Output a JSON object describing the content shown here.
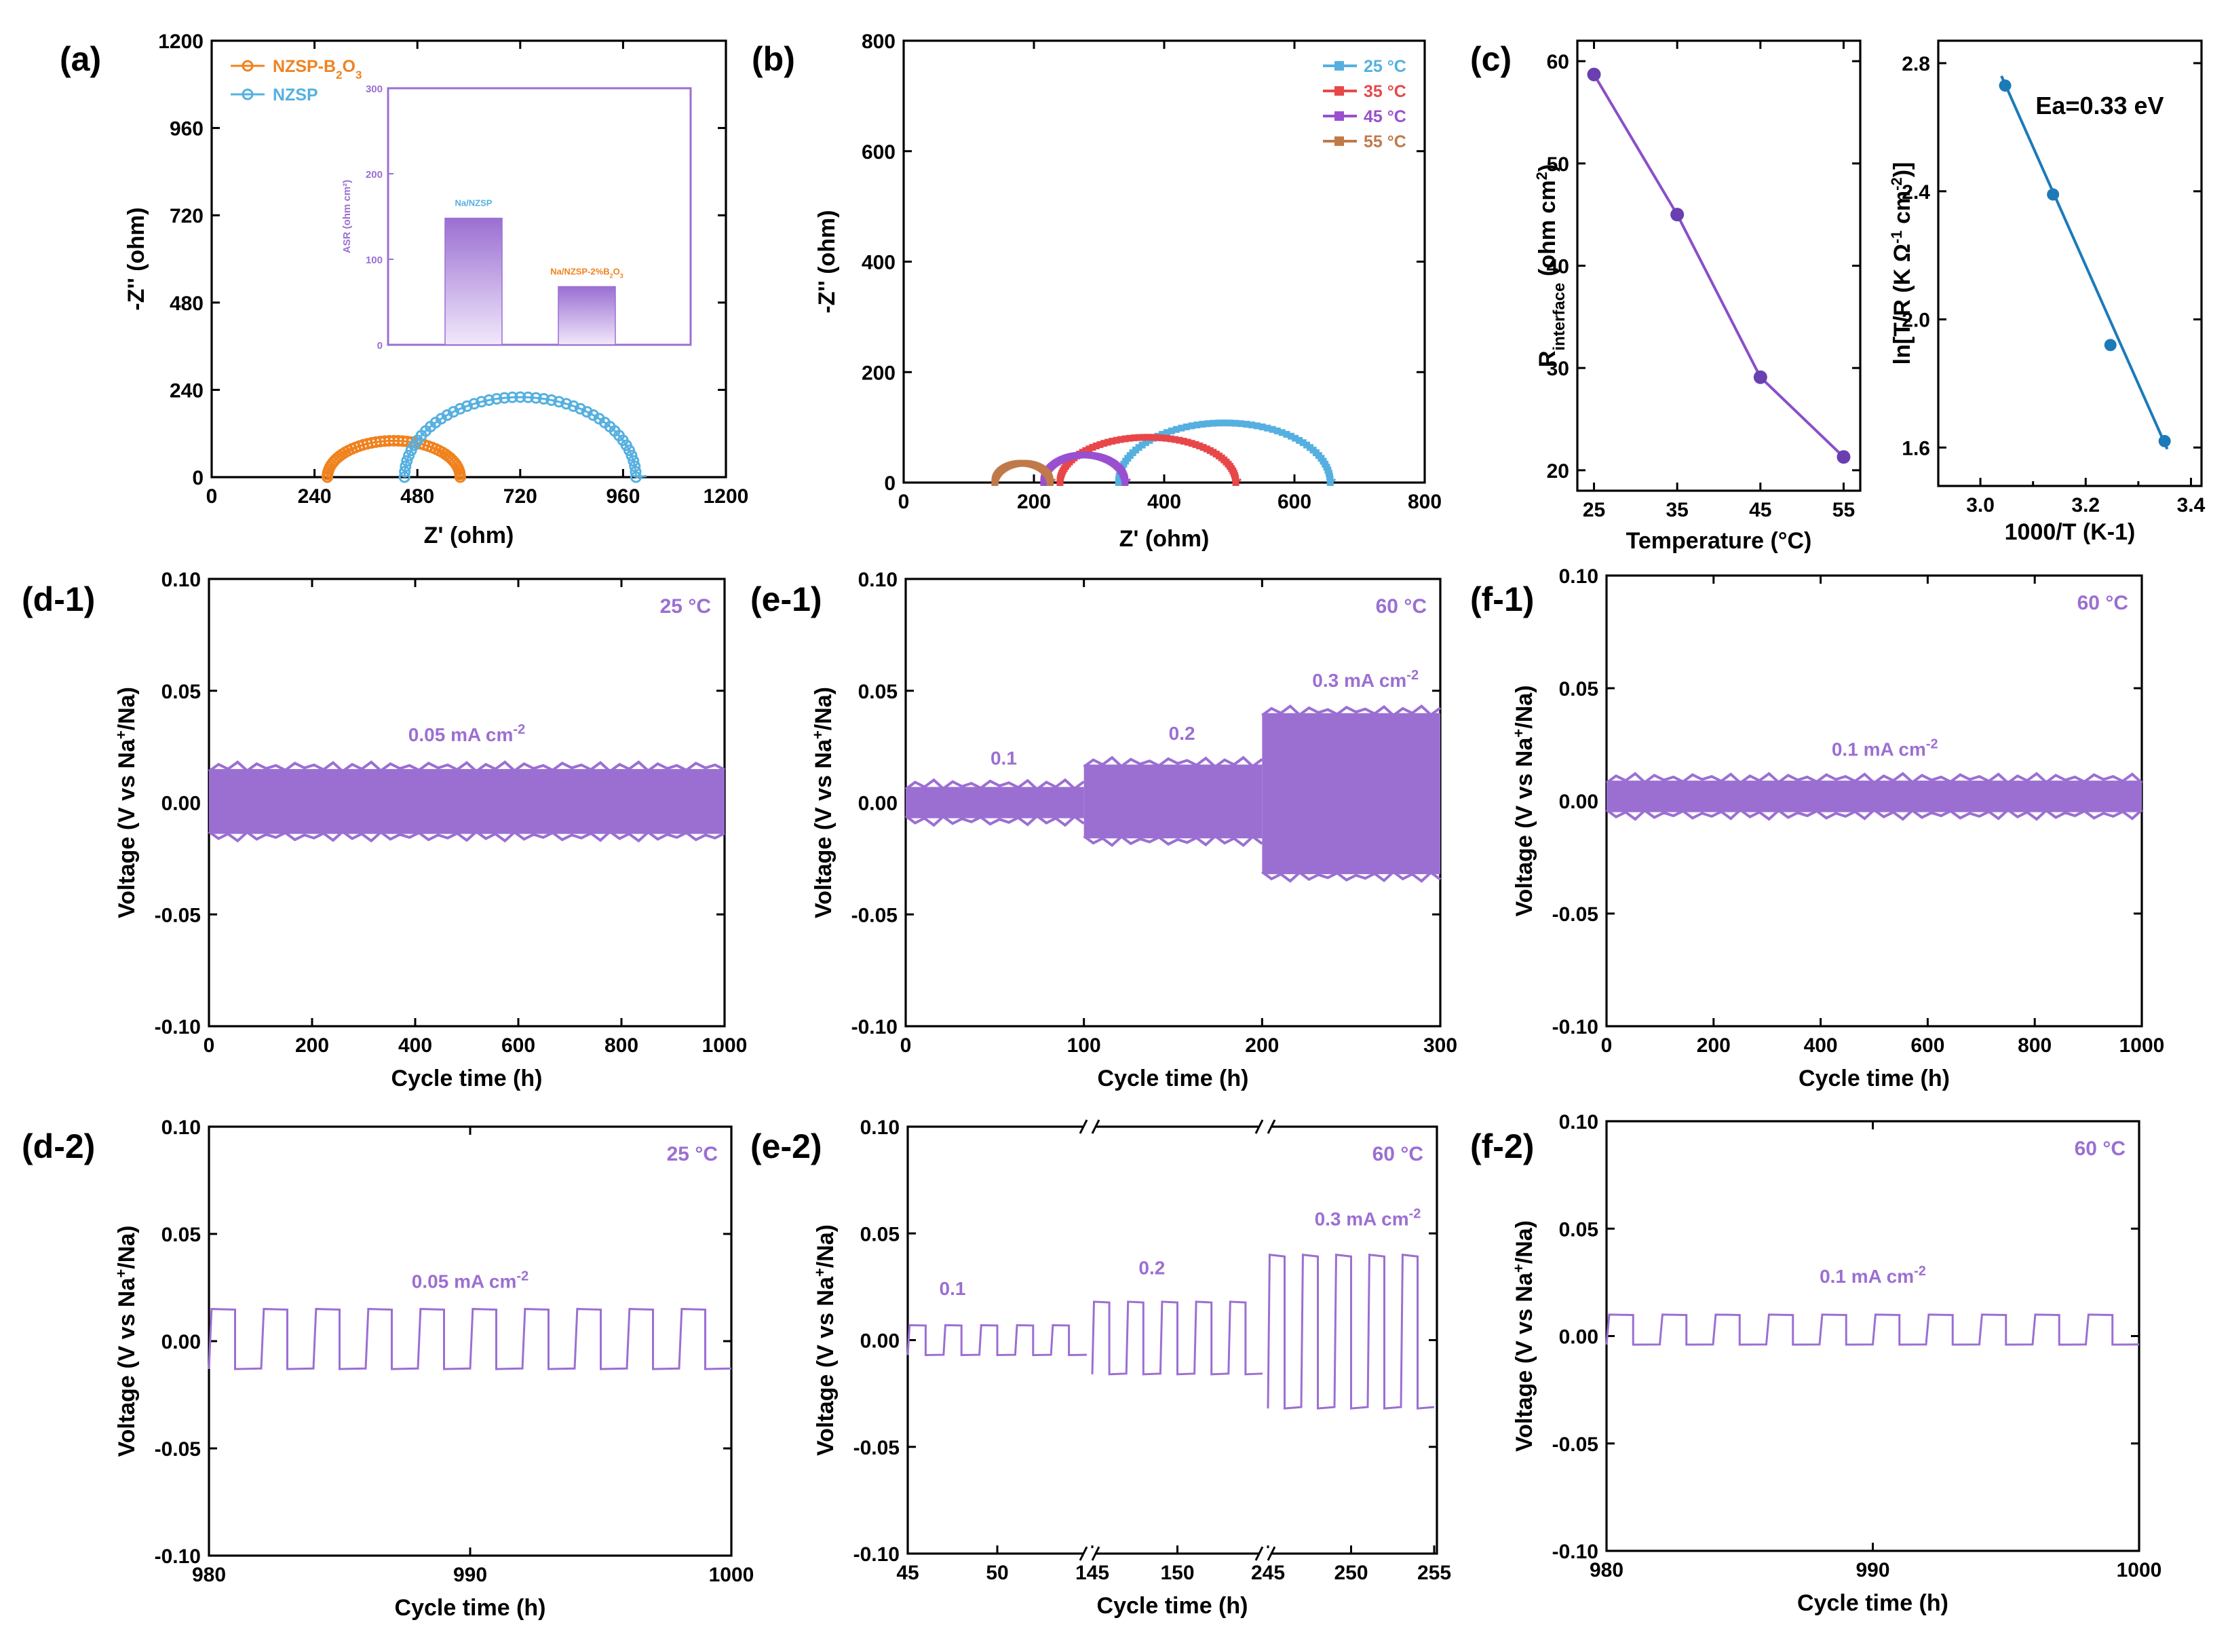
{
  "colors": {
    "purple": "#9b6fd2",
    "orange": "#f0821e",
    "blue": "#55b0e0",
    "red": "#e8474a",
    "violet": "#9a4fd0",
    "brown": "#c07a4a",
    "ea_line": "#1c7ab8",
    "dots": "#6a3fb0"
  },
  "chart_data": [
    {
      "id": "a",
      "panel_label": "(a)",
      "type": "scatter",
      "xlabel": "Z' (ohm)",
      "ylabel": "-Z'' (ohm)",
      "xlim": [
        0,
        1200
      ],
      "ylim": [
        0,
        1200
      ],
      "xticks": [
        "0",
        "240",
        "480",
        "720",
        "960",
        "1200"
      ],
      "yticks": [
        "0",
        "240",
        "480",
        "720",
        "960",
        "1200"
      ],
      "legend": [
        {
          "name": "NZSP-B",
          "sub": "2",
          "tail": "O",
          "sub2": "3"
        },
        {
          "name": "NZSP"
        }
      ],
      "series": [
        {
          "name": "NZSP-B2O3",
          "type": "semicircle",
          "r0": 270,
          "r1": 580,
          "peak": 100
        },
        {
          "name": "NZSP",
          "type": "semicircle",
          "r0": 450,
          "r1": 990,
          "peak": 220
        }
      ],
      "inset": {
        "type": "bar",
        "ylabel": "ASR (ohm cm²)",
        "ylim": [
          0,
          300
        ],
        "yticks": [
          "0",
          "100",
          "200",
          "300"
        ],
        "categories": [
          "Na/NZSP",
          "Na/NZSP-2%B2O3"
        ],
        "labels": [
          {
            "main": "Na/NZSP"
          },
          {
            "main": "Na/NZSP-2%B",
            "sub": "2",
            "tail": "O",
            "sub2": "3"
          }
        ],
        "values": [
          148,
          68
        ]
      }
    },
    {
      "id": "b",
      "panel_label": "(b)",
      "type": "scatter",
      "xlabel": "Z' (ohm)",
      "ylabel": "-Z'' (ohm)",
      "xlim": [
        0,
        800
      ],
      "ylim": [
        0,
        800
      ],
      "xticks": [
        "0",
        "200",
        "400",
        "600",
        "800"
      ],
      "yticks": [
        "0",
        "200",
        "400",
        "600",
        "800"
      ],
      "legend": [
        "25 °C",
        "35 °C",
        "45 °C",
        "55 °C"
      ],
      "series": [
        {
          "name": "25 °C",
          "r0": 330,
          "r1": 655,
          "peak": 108
        },
        {
          "name": "35 °C",
          "r0": 240,
          "r1": 510,
          "peak": 82
        },
        {
          "name": "45 °C",
          "r0": 215,
          "r1": 340,
          "peak": 50
        },
        {
          "name": "55 °C",
          "r0": 140,
          "r1": 225,
          "peak": 35
        }
      ]
    },
    {
      "id": "c1",
      "panel_label": "(c)",
      "type": "line",
      "xlabel": "Temperature (°C)",
      "ylabel": "R interface (ohm cm²)",
      "xlim": [
        23,
        57
      ],
      "ylim": [
        18,
        62
      ],
      "xticks": [
        "25",
        "35",
        "45",
        "55"
      ],
      "yticks": [
        "20",
        "30",
        "40",
        "50",
        "60"
      ],
      "x": [
        25,
        35,
        45,
        55
      ],
      "y": [
        58.7,
        45.0,
        29.1,
        21.3
      ]
    },
    {
      "id": "c2",
      "type": "scatter",
      "xlabel": "1000/T (K-1)",
      "ylabel": "ln[T/R (K Ω-1 cm-2)]",
      "xlim": [
        2.92,
        3.42
      ],
      "ylim": [
        1.48,
        2.87
      ],
      "xticks": [
        "3.0",
        "3.2",
        "3.4",
        "3.1",
        "3.3"
      ],
      "yticks": [
        "1.6",
        "2.0",
        "2.4",
        "2.8"
      ],
      "x": [
        3.047,
        3.138,
        3.247,
        3.35
      ],
      "y": [
        2.73,
        2.39,
        1.92,
        1.62
      ],
      "annotation": "Ea=0.33 eV"
    },
    {
      "id": "d1",
      "panel_label": "(d-1)",
      "type": "area",
      "xlabel": "Cycle time (h)",
      "ylabel": "Voltage (V vs Na+/Na)",
      "xlim": [
        0,
        1000
      ],
      "ylim": [
        -0.1,
        0.1
      ],
      "xticks": [
        "0",
        "200",
        "400",
        "600",
        "800",
        "1000"
      ],
      "yticks": [
        "-0.10",
        "-0.05",
        "0.00",
        "0.05",
        "0.10"
      ],
      "temperature": "25 °C",
      "current": {
        "text": "0.05 mA cm",
        "sup": "-2"
      },
      "bands": [
        {
          "x0": 0,
          "x1": 1000,
          "top": 0.015,
          "bottom": -0.014
        }
      ]
    },
    {
      "id": "e1",
      "panel_label": "(e-1)",
      "type": "area",
      "xlabel": "Cycle time (h)",
      "ylabel": "Voltage (V vs Na+/Na)",
      "xlim": [
        0,
        300
      ],
      "ylim": [
        -0.1,
        0.1
      ],
      "xticks": [
        "0",
        "100",
        "200",
        "300"
      ],
      "yticks": [
        "-0.10",
        "-0.05",
        "0.00",
        "0.05",
        "0.10"
      ],
      "temperature": "60 °C",
      "currents": [
        "0.1",
        "0.2",
        {
          "text": "0.3 mA cm",
          "sup": "-2"
        }
      ],
      "bands": [
        {
          "x0": 0,
          "x1": 100,
          "top": 0.007,
          "bottom": -0.007
        },
        {
          "x0": 100,
          "x1": 200,
          "top": 0.017,
          "bottom": -0.016
        },
        {
          "x0": 200,
          "x1": 300,
          "top": 0.04,
          "bottom": -0.032
        }
      ]
    },
    {
      "id": "f1",
      "panel_label": "(f-1)",
      "type": "area",
      "xlabel": "Cycle time (h)",
      "ylabel": "Voltage (V vs Na+/Na)",
      "xlim": [
        0,
        1000
      ],
      "ylim": [
        -0.1,
        0.1
      ],
      "xticks": [
        "0",
        "200",
        "400",
        "600",
        "800",
        "1000"
      ],
      "yticks": [
        "-0.10",
        "-0.05",
        "0.00",
        "0.05",
        "0.10"
      ],
      "temperature": "60 °C",
      "current": {
        "text": "0.1 mA cm",
        "sup": "-2"
      },
      "bands": [
        {
          "x0": 0,
          "x1": 1000,
          "top": 0.009,
          "bottom": -0.005
        }
      ]
    },
    {
      "id": "d2",
      "panel_label": "(d-2)",
      "type": "line",
      "xlabel": "Cycle time (h)",
      "ylabel": "Voltage (V vs Na+/Na)",
      "xlim": [
        980,
        1000
      ],
      "ylim": [
        -0.1,
        0.1
      ],
      "xticks": [
        "980",
        "990",
        "1000"
      ],
      "yticks": [
        "-0.10",
        "-0.05",
        "0.00",
        "0.05",
        "0.10"
      ],
      "temperature": "25 °C",
      "current": {
        "text": "0.05 mA cm",
        "sup": "-2"
      },
      "cycles": {
        "x0": 980,
        "x1": 1000,
        "period": 2,
        "high": 0.015,
        "low": -0.013
      }
    },
    {
      "id": "e2",
      "panel_label": "(e-2)",
      "type": "line",
      "xlabel": "Cycle time (h)",
      "ylabel": "Voltage (V vs Na+/Na)",
      "ylim": [
        -0.1,
        0.1
      ],
      "xticks": [
        "45",
        "50",
        "145",
        "150",
        "245",
        "250",
        "255"
      ],
      "yticks": [
        "-0.10",
        "-0.05",
        "0.00",
        "0.05",
        "0.10"
      ],
      "temperature": "60 °C",
      "currents": [
        "0.1",
        "0.2",
        {
          "text": "0.3 mA cm",
          "sup": "-2"
        }
      ],
      "segments": [
        {
          "x0": 45,
          "x1": 55,
          "period": 2,
          "high": 0.007,
          "low": -0.007
        },
        {
          "x0": 145,
          "x1": 155,
          "period": 2,
          "high": 0.018,
          "low": -0.016
        },
        {
          "x0": 245,
          "x1": 255,
          "period": 2,
          "high": 0.04,
          "low": -0.032
        }
      ]
    },
    {
      "id": "f2",
      "panel_label": "(f-2)",
      "type": "line",
      "xlabel": "Cycle time (h)",
      "ylabel": "Voltage (V vs Na+/Na)",
      "xlim": [
        980,
        1000
      ],
      "ylim": [
        -0.1,
        0.1
      ],
      "xticks": [
        "980",
        "990",
        "1000"
      ],
      "yticks": [
        "-0.10",
        "-0.05",
        "0.00",
        "0.05",
        "0.10"
      ],
      "temperature": "60 °C",
      "current": {
        "text": "0.1 mA cm",
        "sup": "-2"
      },
      "cycles": {
        "x0": 980,
        "x1": 1000,
        "period": 2,
        "high": 0.01,
        "low": -0.004
      }
    }
  ]
}
